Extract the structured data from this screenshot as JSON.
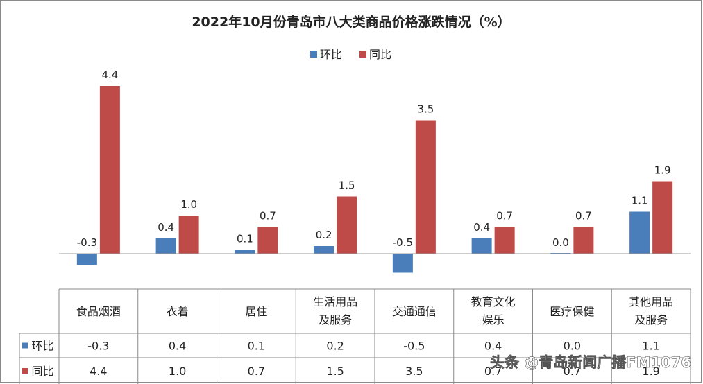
{
  "chart_data": {
    "type": "bar",
    "title": "2022年10月份青岛市八大类商品价格涨跌情况（%）",
    "categories": [
      [
        "食品烟酒"
      ],
      [
        "衣着"
      ],
      [
        "居住"
      ],
      [
        "生活用品",
        "及服务"
      ],
      [
        "交通通信"
      ],
      [
        "教育文化",
        "娱乐"
      ],
      [
        "医疗保健"
      ],
      [
        "其他用品",
        "及服务"
      ]
    ],
    "series": [
      {
        "name": "环比",
        "color": "#4a7ebb",
        "values": [
          -0.3,
          0.4,
          0.1,
          0.2,
          -0.5,
          0.4,
          0.0,
          1.1
        ],
        "labels": [
          "-0.3",
          "0.4",
          "0.1",
          "0.2",
          "-0.5",
          "0.4",
          "0.0",
          "1.1"
        ]
      },
      {
        "name": "同比",
        "color": "#be4b48",
        "values": [
          4.4,
          1.0,
          0.7,
          1.5,
          3.5,
          0.7,
          0.7,
          1.9
        ],
        "labels": [
          "4.4",
          "1.0",
          "0.7",
          "1.5",
          "3.5",
          "0.7",
          "0.7",
          "1.9"
        ]
      }
    ],
    "xlabel": "",
    "ylabel": "",
    "legend": "top-center",
    "grid": false,
    "data_table": true
  },
  "watermark": "头条 @青岛新闻广播FM1076"
}
